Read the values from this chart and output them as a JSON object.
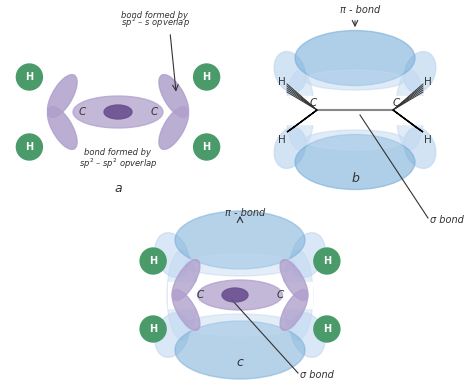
{
  "background_color": "#ffffff",
  "h_color": "#4a9a6a",
  "h_text_color": "white",
  "orbital_purple_light": "#b0a0cc",
  "orbital_purple_dark": "#6a5090",
  "orbital_blue_light": "#c0d8f0",
  "orbital_blue_mid": "#7aaed8",
  "orbital_blue_dark": "#5090c0",
  "c_label": "C",
  "h_label": "H",
  "label_a": "a",
  "label_b": "b",
  "label_c": "c",
  "text_color": "#333333",
  "pi_bond_label": "π - bond",
  "sigma_bond_label": "σ bond",
  "bond_formed_sp2_s": "bond formed by\nsp² – s opverlap",
  "bond_formed_sp2_sp2": "bond formed by\nsp² – sp² opverlap",
  "fig_w": 4.74,
  "fig_h": 3.91,
  "dpi": 100
}
